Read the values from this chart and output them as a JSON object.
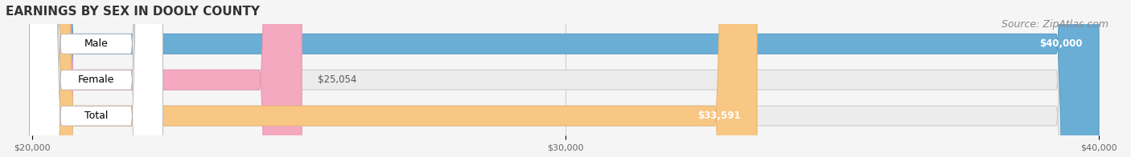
{
  "title": "EARNINGS BY SEX IN DOOLY COUNTY",
  "source": "Source: ZipAtlas.com",
  "categories": [
    "Male",
    "Female",
    "Total"
  ],
  "values": [
    40000,
    25054,
    33591
  ],
  "bar_colors": [
    "#6aaed6",
    "#f4a9c0",
    "#f9c784"
  ],
  "bar_edge_colors": [
    "#5a9ec6",
    "#e898b0",
    "#e8b674"
  ],
  "label_texts": [
    "$40,000",
    "$25,054",
    "$33,591"
  ],
  "label_inside": [
    true,
    false,
    true
  ],
  "xmin": 20000,
  "xmax": 40000,
  "xtick_values": [
    20000,
    30000,
    40000
  ],
  "xtick_labels": [
    "$20,000",
    "$30,000",
    "$40,000"
  ],
  "background_color": "#f5f5f5",
  "bar_bg_color": "#e8e8e8",
  "title_fontsize": 11,
  "source_fontsize": 9,
  "label_fontsize": 9,
  "bar_height": 0.55,
  "bar_gap": 0.15
}
